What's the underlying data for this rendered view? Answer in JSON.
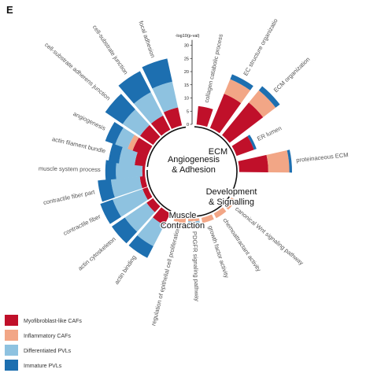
{
  "panel_letter": "E",
  "colors": {
    "Myofibroblast-like CAFs": "#c0102a",
    "Inflammatory CAFs": "#f2a686",
    "Differentiated PVLs": "#8ec2e0",
    "Immature PVLs": "#1d6fb0"
  },
  "chart_data": {
    "type": "bar",
    "subtype": "circular stacked bar",
    "axis": {
      "label": "-log10(p-val)",
      "ticks": [
        0,
        5,
        10,
        15,
        20,
        25,
        30
      ],
      "range": [
        0,
        32
      ]
    },
    "series_order": [
      "Myofibroblast-like CAFs",
      "Inflammatory CAFs",
      "Differentiated PVLs",
      "Immature PVLs"
    ],
    "legend": [
      {
        "name": "Myofibroblast-like CAFs",
        "color": "#c0102a"
      },
      {
        "name": "Inflammatory CAFs",
        "color": "#f2a686"
      },
      {
        "name": "Differentiated PVLs",
        "color": "#8ec2e0"
      },
      {
        "name": "Immature PVLs",
        "color": "#1d6fb0"
      }
    ],
    "groups": [
      {
        "title_lines": [
          "ECM"
        ],
        "start_angle": 3,
        "end_angle": 117
      },
      {
        "title_lines": [
          "Development",
          "& Signalling"
        ],
        "start_angle": 124,
        "end_angle": 200
      },
      {
        "title_lines": [
          "Muscle",
          "Contraction"
        ],
        "start_angle": 208,
        "end_angle": 272
      },
      {
        "title_lines": [
          "Angiogenesis",
          "& Adhesion"
        ],
        "start_angle": 276,
        "end_angle": 352
      }
    ],
    "categories": [
      {
        "term": "collagen catabolic process",
        "angle": 12,
        "Myofibroblast-like CAFs": 7,
        "Inflammatory CAFs": 0,
        "Differentiated PVLs": 0,
        "Immature PVLs": 0
      },
      {
        "term": "EC structure organizatio",
        "angle": 29,
        "Myofibroblast-like CAFs": 14,
        "Inflammatory CAFs": 6,
        "Differentiated PVLs": 0,
        "Immature PVLs": 2
      },
      {
        "term": "ECM organization",
        "angle": 46,
        "Myofibroblast-like CAFs": 16,
        "Inflammatory CAFs": 6,
        "Differentiated PVLs": 0,
        "Immature PVLs": 2
      },
      {
        "term": "ER lumen",
        "angle": 64,
        "Myofibroblast-like CAFs": 7,
        "Inflammatory CAFs": 0,
        "Differentiated PVLs": 0,
        "Immature PVLs": 1
      },
      {
        "term": "proteinaceous ECM",
        "angle": 84,
        "Myofibroblast-like CAFs": 11,
        "Inflammatory CAFs": 8,
        "Differentiated PVLs": 0,
        "Immature PVLs": 1
      },
      {
        "term": "canonical Wnt signaling pathway",
        "angle": 130,
        "Myofibroblast-like CAFs": 0,
        "Inflammatory CAFs": 2,
        "Differentiated PVLs": 0,
        "Immature PVLs": 0
      },
      {
        "term": "chemoattractant activity",
        "angle": 146,
        "Myofibroblast-like CAFs": 0,
        "Inflammatory CAFs": 2,
        "Differentiated PVLs": 0,
        "Immature PVLs": 0
      },
      {
        "term": "growth factor activity",
        "angle": 162,
        "Myofibroblast-like CAFs": 0,
        "Inflammatory CAFs": 2,
        "Differentiated PVLs": 0,
        "Immature PVLs": 0
      },
      {
        "term": "PDGFR signaling pathway",
        "angle": 178,
        "Myofibroblast-like CAFs": 0,
        "Inflammatory CAFs": 1,
        "Differentiated PVLs": 1,
        "Immature PVLs": 1
      },
      {
        "term": "regulation of epithelial cell proliferation",
        "angle": 194,
        "Myofibroblast-like CAFs": 0,
        "Inflammatory CAFs": 2,
        "Differentiated PVLs": 0,
        "Immature PVLs": 0
      },
      {
        "term": "actin binding",
        "angle": 214,
        "Myofibroblast-like CAFs": 5,
        "Inflammatory CAFs": 0,
        "Differentiated PVLs": 9,
        "Immature PVLs": 5
      },
      {
        "term": "actin cytoskeleton",
        "angle": 229,
        "Myofibroblast-like CAFs": 3,
        "Inflammatory CAFs": 0,
        "Differentiated PVLs": 10,
        "Immature PVLs": 6
      },
      {
        "term": "contractile fiber",
        "angle": 244,
        "Myofibroblast-like CAFs": 2,
        "Inflammatory CAFs": 0,
        "Differentiated PVLs": 12,
        "Immature PVLs": 5
      },
      {
        "term": "contractile fiber part",
        "angle": 258,
        "Myofibroblast-like CAFs": 2,
        "Inflammatory CAFs": 0,
        "Differentiated PVLs": 11,
        "Immature PVLs": 5
      },
      {
        "term": "muscle system process",
        "angle": 271,
        "Myofibroblast-like CAFs": 1,
        "Inflammatory CAFs": 0,
        "Differentiated PVLs": 10,
        "Immature PVLs": 4
      },
      {
        "term": "actin filament bundle",
        "angle": 283,
        "Myofibroblast-like CAFs": 4,
        "Inflammatory CAFs": 0,
        "Differentiated PVLs": 6,
        "Immature PVLs": 4
      },
      {
        "term": "angiogenesis",
        "angle": 296,
        "Myofibroblast-like CAFs": 6,
        "Inflammatory CAFs": 2,
        "Differentiated PVLs": 5,
        "Immature PVLs": 4
      },
      {
        "term": "cell-substrate adherens junction",
        "angle": 311,
        "Myofibroblast-like CAFs": 6,
        "Inflammatory CAFs": 0,
        "Differentiated PVLs": 8,
        "Immature PVLs": 8
      },
      {
        "term": "cell-substrate junction",
        "angle": 326,
        "Myofibroblast-like CAFs": 6,
        "Inflammatory CAFs": 0,
        "Differentiated PVLs": 10,
        "Immature PVLs": 9
      },
      {
        "term": "focal adhesion",
        "angle": 341,
        "Myofibroblast-like CAFs": 7,
        "Inflammatory CAFs": 0,
        "Differentiated PVLs": 10,
        "Immature PVLs": 9
      }
    ]
  }
}
